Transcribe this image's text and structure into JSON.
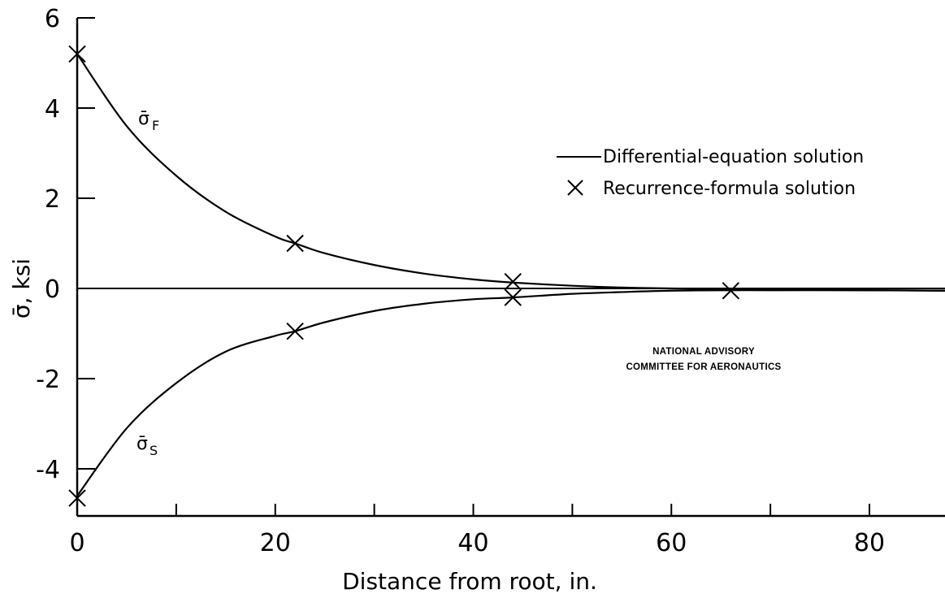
{
  "chart_data": {
    "type": "line",
    "xlabel": "Distance from root, in.",
    "ylabel": "σ̄, ksi",
    "xlim": [
      0,
      88
    ],
    "ylim": [
      -5,
      6
    ],
    "x_ticks": [
      "0",
      "20",
      "40",
      "60",
      "80"
    ],
    "y_ticks": [
      "6",
      "4",
      "2",
      "0",
      "-2",
      "-4"
    ],
    "grid": false,
    "legend_position": "right",
    "legend": {
      "line_label": "Differential-equation solution",
      "marker_label": "Recurrence-formula solution"
    },
    "series": [
      {
        "name": "σ̄F",
        "label_symbol": "σ̄",
        "label_sub": "F",
        "kind": "line",
        "x": [
          0,
          5,
          10,
          15,
          20,
          22,
          25,
          30,
          35,
          40,
          44,
          50,
          55,
          60,
          66,
          70,
          80,
          88
        ],
        "y": [
          5.2,
          3.6,
          2.5,
          1.7,
          1.15,
          1.0,
          0.78,
          0.52,
          0.33,
          0.2,
          0.13,
          0.06,
          0.02,
          0.0,
          -0.02,
          -0.03,
          -0.04,
          -0.05
        ]
      },
      {
        "name": "σ̄S",
        "label_symbol": "σ̄",
        "label_sub": "S",
        "kind": "line",
        "x": [
          0,
          5,
          10,
          15,
          20,
          22,
          25,
          30,
          35,
          40,
          44,
          50,
          55,
          60,
          66,
          70,
          80,
          88
        ],
        "y": [
          -4.6,
          -3.1,
          -2.1,
          -1.4,
          -1.05,
          -0.95,
          -0.75,
          -0.5,
          -0.34,
          -0.24,
          -0.2,
          -0.12,
          -0.08,
          -0.05,
          -0.04,
          -0.04,
          -0.04,
          -0.05
        ]
      },
      {
        "name": "Recurrence-formula solution",
        "kind": "markers",
        "x": [
          0,
          22,
          44,
          0,
          22,
          44,
          66
        ],
        "y": [
          5.2,
          1.0,
          0.15,
          -4.65,
          -0.95,
          -0.2,
          -0.05
        ]
      }
    ],
    "baseline_y": 0
  },
  "annotation": {
    "line1": "NATIONAL ADVISORY",
    "line2": "COMMITTEE FOR AERONAUTICS"
  }
}
